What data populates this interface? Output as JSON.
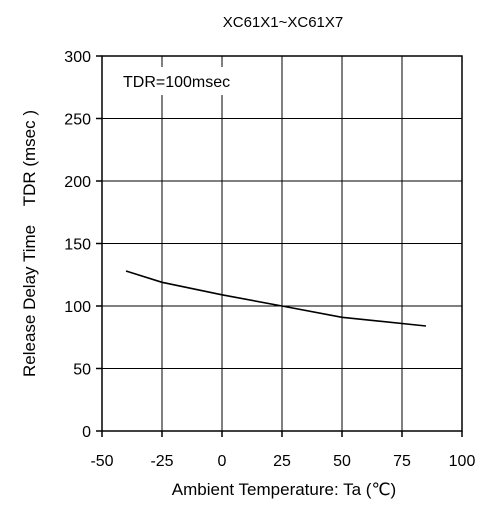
{
  "chart_data": {
    "type": "line",
    "title": "XC61X1~XC61X7",
    "xlabel": "Ambient Temperature: Ta (℃)",
    "ylabel": "Release Delay Time    TDR (msec )",
    "annotation": "TDR=100msec",
    "xlim": [
      -50,
      100
    ],
    "ylim": [
      0,
      300
    ],
    "xticks": [
      -50,
      -25,
      0,
      25,
      50,
      75,
      100
    ],
    "yticks": [
      0,
      50,
      100,
      150,
      200,
      250,
      300
    ],
    "xtick_labels": [
      "-50",
      "-25",
      "0",
      "25",
      "50",
      "75",
      "100"
    ],
    "ytick_labels": [
      "0",
      "50",
      "100",
      "150",
      "200",
      "250",
      "300"
    ],
    "grid": true,
    "series": [
      {
        "color": "#000000",
        "x": [
          -40,
          -25,
          0,
          25,
          50,
          85
        ],
        "y": [
          128,
          119,
          109,
          100,
          91,
          84
        ]
      }
    ]
  }
}
